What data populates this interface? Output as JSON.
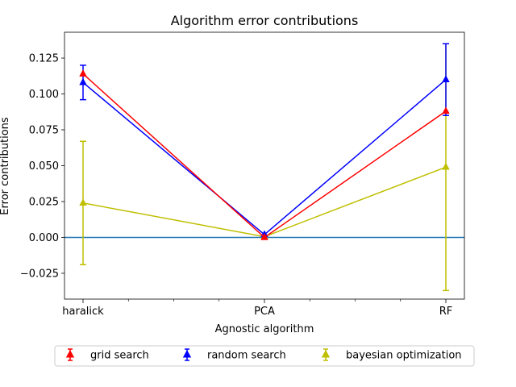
{
  "chart_data": {
    "type": "line",
    "title": "Algorithm error contributions",
    "xlabel": "Agnostic algorithm",
    "ylabel": "Error contributions",
    "categories": [
      "haralick",
      "PCA",
      "RF"
    ],
    "ylim": [
      -0.043,
      0.143
    ],
    "yticks": [
      -0.025,
      0.0,
      0.025,
      0.05,
      0.075,
      0.1,
      0.125
    ],
    "ytick_labels": [
      "−0.025",
      "0.000",
      "0.025",
      "0.050",
      "0.075",
      "0.100",
      "0.125"
    ],
    "reference_line": 0.0,
    "reference_line_color": "#1f77b4",
    "grid": false,
    "legend_position": "below",
    "series": [
      {
        "name": "grid search",
        "color": "#ff0000",
        "values": [
          0.114,
          0.0,
          0.088
        ],
        "errors": [
          0.0,
          0.0,
          0.0
        ]
      },
      {
        "name": "random search",
        "color": "#0000ff",
        "values": [
          0.108,
          0.002,
          0.11
        ],
        "errors": [
          0.012,
          0.0,
          0.025
        ]
      },
      {
        "name": "bayesian optimization",
        "color": "#bfbf00",
        "values": [
          0.024,
          0.0005,
          0.049
        ],
        "errors": [
          0.043,
          0.0,
          0.086
        ]
      }
    ]
  }
}
